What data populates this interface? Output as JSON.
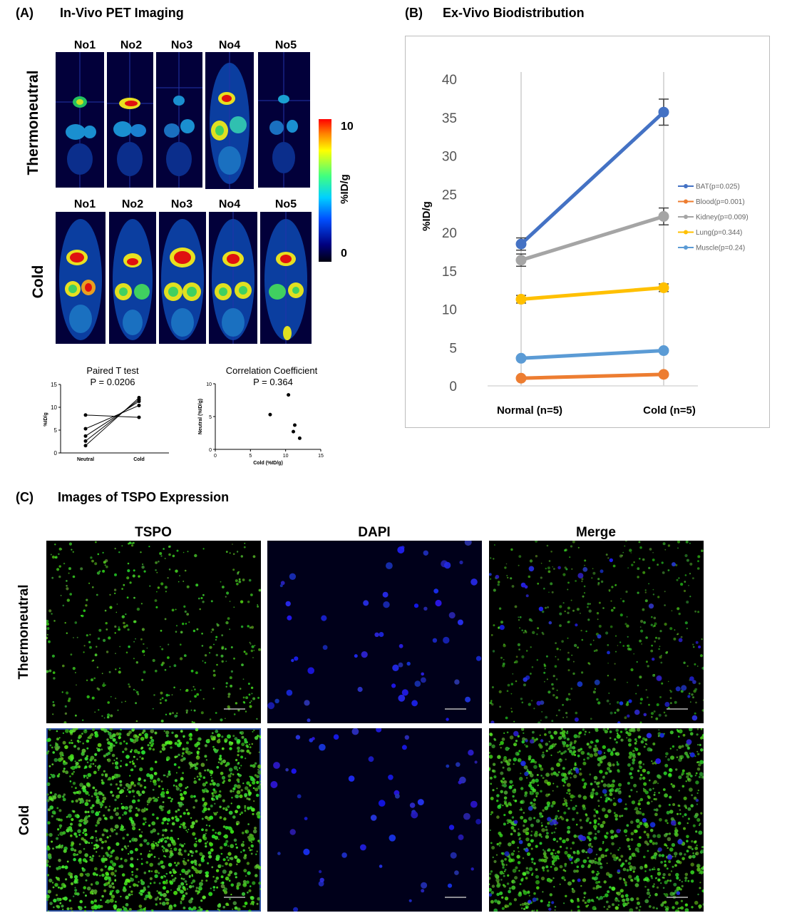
{
  "panelA": {
    "letter": "(A)",
    "title": "In-Vivo PET Imaging",
    "row_labels": [
      "Thermoneutral",
      "Cold"
    ],
    "mice_row1": [
      "No1",
      "No2",
      "No3",
      "No4",
      "No5"
    ],
    "mice_row2": [
      "No1",
      "No2",
      "No3",
      "No4",
      "No5"
    ],
    "colorbar": {
      "max": "10",
      "min": "0",
      "label": "%ID/g"
    }
  },
  "panelB": {
    "letter": "(B)",
    "title": "Ex-Vivo Biodistribution"
  },
  "panelC": {
    "letter": "(C)",
    "title": "Images of TSPO Expression",
    "columns": [
      "TSPO",
      "DAPI",
      "Merge"
    ],
    "rows": [
      "Thermoneutral",
      "Cold"
    ]
  },
  "chart_data": [
    {
      "type": "line",
      "title": "",
      "xlabel": "",
      "ylabel": "%ID/g",
      "categories": [
        "Normal (n=5)",
        "Cold (n=5)"
      ],
      "ylim": [
        0,
        40
      ],
      "yticks": [
        0,
        5,
        10,
        15,
        20,
        25,
        30,
        35,
        40
      ],
      "legend_position": "right",
      "series": [
        {
          "name": "BAT(p=0.025)",
          "values": [
            18.5,
            35.7
          ],
          "errors": [
            0.8,
            1.7
          ],
          "color": "#4472c4"
        },
        {
          "name": "Blood(p=0.001)",
          "values": [
            1.0,
            1.5
          ],
          "errors": [
            0.1,
            0.1
          ],
          "color": "#ed7d31"
        },
        {
          "name": "Kidney(p=0.009)",
          "values": [
            16.4,
            22.1
          ],
          "errors": [
            0.8,
            1.1
          ],
          "color": "#a5a5a5"
        },
        {
          "name": "Lung(p=0.344)",
          "values": [
            11.3,
            12.8
          ],
          "errors": [
            0.5,
            0.5
          ],
          "color": "#ffc000"
        },
        {
          "name": "Muscle(p=0.24)",
          "values": [
            3.6,
            4.6
          ],
          "errors": [
            0.2,
            0.2
          ],
          "color": "#5b9bd5"
        }
      ]
    },
    {
      "type": "line",
      "title": "Paired T test",
      "subtitle": "P = 0.0206",
      "ylabel": "%ID/g",
      "categories": [
        "Neutral",
        "Cold"
      ],
      "ylim": [
        0,
        15
      ],
      "yticks": [
        0,
        5,
        10,
        15
      ],
      "pairs": [
        [
          8.3,
          7.8
        ],
        [
          5.3,
          10.4
        ],
        [
          3.7,
          11.3
        ],
        [
          2.6,
          11.7
        ],
        [
          1.6,
          12.1
        ]
      ]
    },
    {
      "type": "scatter",
      "title": "Correlation Coefficient",
      "subtitle": "P = 0.364",
      "xlabel": "Cold (%ID/g)",
      "ylabel": "Neutral (%ID/g)",
      "xlim": [
        0,
        15
      ],
      "ylim": [
        0,
        10
      ],
      "xticks": [
        0,
        5,
        10,
        15
      ],
      "yticks": [
        0,
        5,
        10
      ],
      "points": [
        [
          7.8,
          5.3
        ],
        [
          10.4,
          8.3
        ],
        [
          11.3,
          3.7
        ],
        [
          11.1,
          2.7
        ],
        [
          12.0,
          1.7
        ]
      ]
    }
  ]
}
